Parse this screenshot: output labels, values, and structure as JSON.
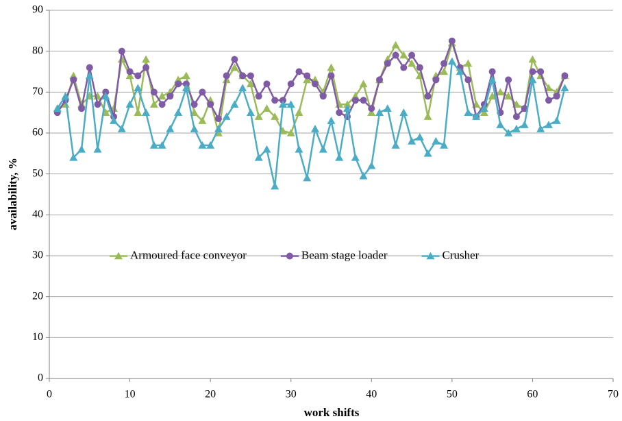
{
  "chart_data": {
    "type": "line",
    "x_label": "work shifts",
    "y_label": "availability,  %",
    "xlim": [
      0,
      70
    ],
    "xticks": [
      0,
      10,
      20,
      30,
      40,
      50,
      60,
      70
    ],
    "ylim": [
      0,
      90
    ],
    "yticks": [
      0,
      10,
      20,
      30,
      40,
      50,
      60,
      70,
      80,
      90
    ],
    "grid": true,
    "legend": "middle-left",
    "x": [
      1,
      2,
      3,
      4,
      5,
      6,
      7,
      8,
      9,
      10,
      11,
      12,
      13,
      14,
      15,
      16,
      17,
      18,
      19,
      20,
      21,
      22,
      23,
      24,
      25,
      26,
      27,
      28,
      29,
      30,
      31,
      32,
      33,
      34,
      35,
      36,
      37,
      38,
      39,
      40,
      41,
      42,
      43,
      44,
      45,
      46,
      47,
      48,
      49,
      50,
      51,
      52,
      53,
      54,
      55,
      56,
      57,
      58,
      59,
      60,
      61,
      62,
      63,
      64
    ],
    "series": [
      {
        "name": "Armoured face conveyor",
        "color": "#9bbb59",
        "marker": "triangle",
        "values": [
          66,
          67,
          74,
          67,
          69,
          69,
          65,
          66,
          78,
          74,
          65,
          78,
          67,
          69,
          70,
          73,
          74,
          65,
          63,
          68,
          60,
          73,
          76,
          74,
          72,
          64,
          66,
          64,
          60.5,
          60,
          65,
          73,
          73,
          70,
          76,
          67,
          67,
          69,
          72,
          65,
          73,
          78,
          81.5,
          79,
          77,
          74,
          64,
          74,
          75,
          82,
          76,
          77,
          67,
          65,
          69,
          70,
          69,
          67,
          66,
          78,
          74,
          71,
          70,
          74
        ]
      },
      {
        "name": "Beam stage loader",
        "color": "#7f5ba6",
        "marker": "circle",
        "values": [
          65,
          68,
          73,
          66,
          76,
          67,
          70,
          64,
          80,
          75,
          74,
          76,
          70,
          67,
          69,
          72,
          72,
          67,
          70,
          67,
          63.5,
          74,
          78,
          74,
          74,
          69,
          72,
          68,
          68,
          72,
          75,
          74,
          72,
          69,
          74,
          65,
          64,
          68,
          68,
          66,
          73,
          77,
          79,
          76,
          79,
          76,
          69,
          73,
          77,
          82.5,
          76,
          73,
          64,
          67,
          75,
          65,
          73,
          64,
          66,
          75,
          75,
          68,
          69,
          74
        ]
      },
      {
        "name": "Crusher",
        "color": "#4bacc6",
        "marker": "triangle",
        "values": [
          66,
          69,
          54,
          56,
          74,
          56,
          69,
          63,
          61,
          67,
          71,
          65,
          57,
          57,
          61,
          65,
          71,
          61,
          57,
          57,
          61,
          64,
          67,
          71,
          65,
          54,
          56,
          47,
          67,
          67,
          56,
          49,
          61,
          56,
          63,
          54,
          66,
          54,
          49.5,
          52,
          65,
          66,
          57,
          65,
          58,
          59,
          55,
          58,
          57,
          77.5,
          75,
          65,
          64,
          66,
          73,
          62,
          60,
          61,
          62,
          73,
          61,
          62,
          63,
          71
        ]
      }
    ]
  }
}
